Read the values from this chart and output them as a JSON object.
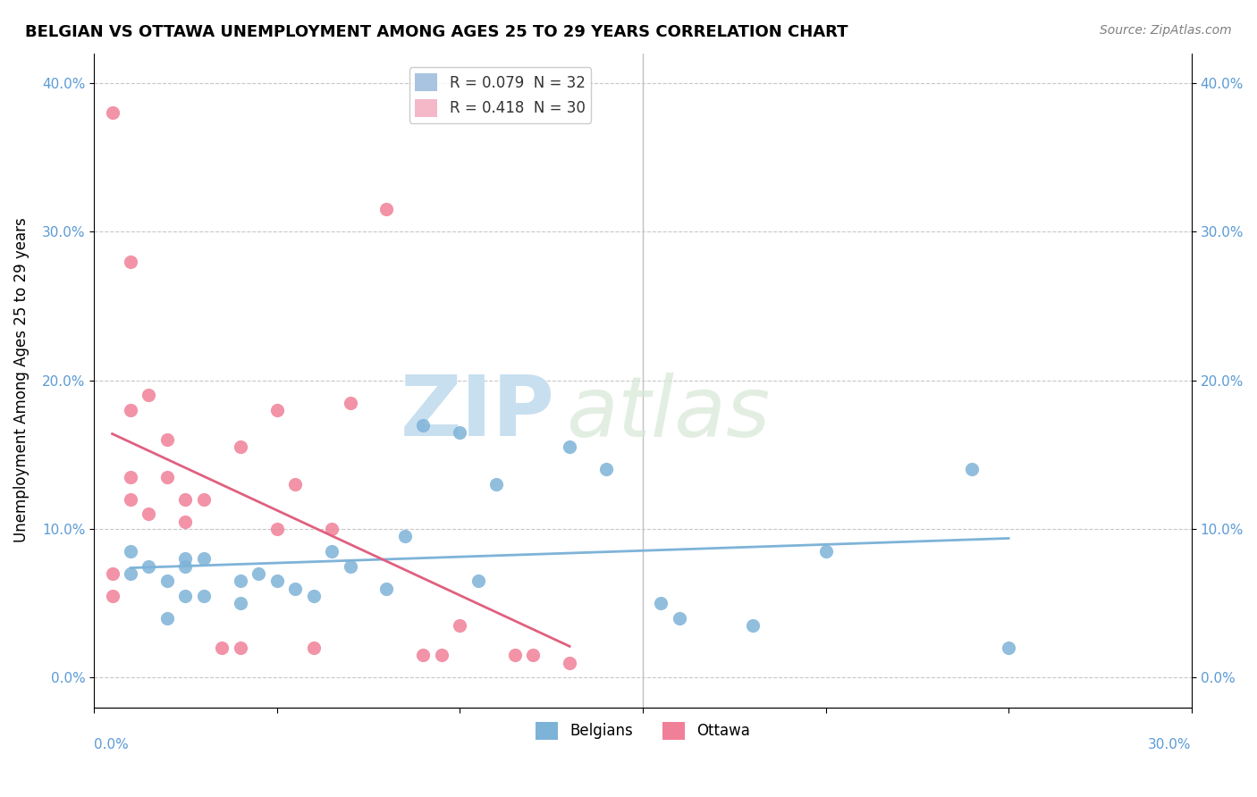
{
  "title": "BELGIAN VS OTTAWA UNEMPLOYMENT AMONG AGES 25 TO 29 YEARS CORRELATION CHART",
  "source": "Source: ZipAtlas.com",
  "ylabel": "Unemployment Among Ages 25 to 29 years",
  "xlim": [
    0,
    0.3
  ],
  "ylim": [
    -0.02,
    0.42
  ],
  "legend_items": [
    {
      "label": "R = 0.079  N = 32",
      "color": "#a8c4e0"
    },
    {
      "label": "R = 0.418  N = 30",
      "color": "#f4b8c8"
    }
  ],
  "belgians_color": "#7eb3d8",
  "ottawa_color": "#f08098",
  "trend_belgians_color": "#7eb3d8",
  "trend_ottawa_color": "#e06080",
  "belgians_x": [
    0.01,
    0.01,
    0.015,
    0.02,
    0.02,
    0.025,
    0.025,
    0.025,
    0.03,
    0.03,
    0.04,
    0.04,
    0.045,
    0.05,
    0.055,
    0.06,
    0.065,
    0.07,
    0.08,
    0.085,
    0.09,
    0.1,
    0.105,
    0.11,
    0.13,
    0.14,
    0.155,
    0.16,
    0.18,
    0.2,
    0.24,
    0.25
  ],
  "belgians_y": [
    0.07,
    0.085,
    0.075,
    0.04,
    0.065,
    0.055,
    0.075,
    0.08,
    0.055,
    0.08,
    0.065,
    0.05,
    0.07,
    0.065,
    0.06,
    0.055,
    0.085,
    0.075,
    0.06,
    0.095,
    0.17,
    0.165,
    0.065,
    0.13,
    0.155,
    0.14,
    0.05,
    0.04,
    0.035,
    0.085,
    0.14,
    0.02
  ],
  "ottawa_x": [
    0.005,
    0.005,
    0.005,
    0.01,
    0.01,
    0.01,
    0.01,
    0.015,
    0.015,
    0.02,
    0.02,
    0.025,
    0.025,
    0.03,
    0.035,
    0.04,
    0.04,
    0.05,
    0.05,
    0.055,
    0.06,
    0.065,
    0.07,
    0.08,
    0.09,
    0.095,
    0.1,
    0.115,
    0.12,
    0.13
  ],
  "ottawa_y": [
    0.38,
    0.07,
    0.055,
    0.28,
    0.18,
    0.135,
    0.12,
    0.19,
    0.11,
    0.16,
    0.135,
    0.12,
    0.105,
    0.12,
    0.02,
    0.02,
    0.155,
    0.18,
    0.1,
    0.13,
    0.02,
    0.1,
    0.185,
    0.315,
    0.015,
    0.015,
    0.035,
    0.015,
    0.015,
    0.01
  ]
}
